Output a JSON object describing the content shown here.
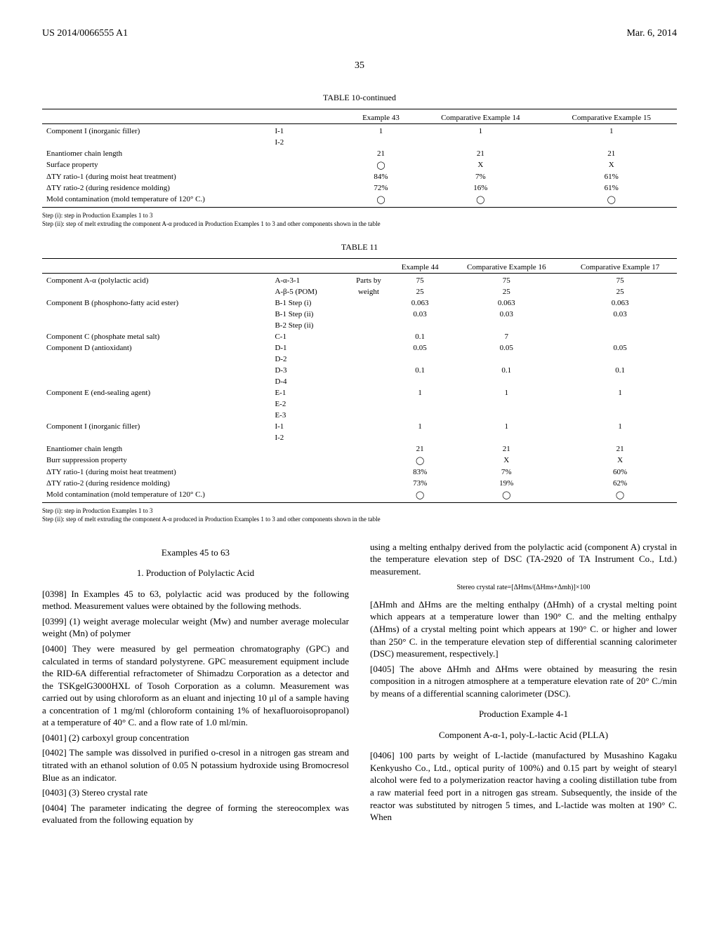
{
  "header": {
    "left": "US 2014/0066555 A1",
    "right": "Mar. 6, 2014",
    "page": "35"
  },
  "table10": {
    "title": "TABLE 10-continued",
    "col_headers": [
      "",
      "",
      "Example 43",
      "Comparative Example 14",
      "Comparative Example 15"
    ],
    "rows": [
      [
        "Component I (inorganic filler)",
        "I-1",
        "1",
        "1",
        "1"
      ],
      [
        "",
        "I-2",
        "",
        "",
        ""
      ],
      [
        "Enantiomer chain length",
        "",
        "21",
        "21",
        "21"
      ],
      [
        "Surface property",
        "",
        "◯",
        "X",
        "X"
      ],
      [
        "ΔTY ratio-1 (during moist heat treatment)",
        "",
        "84%",
        "7%",
        "61%"
      ],
      [
        "ΔTY ratio-2 (during residence molding)",
        "",
        "72%",
        "16%",
        "61%"
      ],
      [
        "Mold contamination (mold temperature of 120° C.)",
        "",
        "◯",
        "◯",
        "◯"
      ]
    ],
    "footnote1": "Step (i): step in Production Examples 1 to 3",
    "footnote2": "Step (ii): step of melt extruding the component A-α produced in Production Examples 1 to 3 and other components shown in the table"
  },
  "table11": {
    "title": "TABLE 11",
    "col_headers": [
      "",
      "",
      "",
      "Example 44",
      "Comparative Example 16",
      "Comparative Example 17"
    ],
    "rows": [
      [
        "Component A-α (polylactic acid)",
        "A-α-3-1",
        "Parts by",
        "75",
        "75",
        "75"
      ],
      [
        "",
        "A-β-5 (POM)",
        "weight",
        "25",
        "25",
        "25"
      ],
      [
        "Component B (phosphono-fatty acid ester)",
        "B-1 Step (i)",
        "",
        "0.063",
        "0.063",
        "0.063"
      ],
      [
        "",
        "B-1 Step (ii)",
        "",
        "0.03",
        "0.03",
        "0.03"
      ],
      [
        "",
        "B-2 Step (ii)",
        "",
        "",
        "",
        ""
      ],
      [
        "Component C (phosphate metal salt)",
        "C-1",
        "",
        "0.1",
        "7",
        ""
      ],
      [
        "Component D (antioxidant)",
        "D-1",
        "",
        "0.05",
        "0.05",
        "0.05"
      ],
      [
        "",
        "D-2",
        "",
        "",
        "",
        ""
      ],
      [
        "",
        "D-3",
        "",
        "0.1",
        "0.1",
        "0.1"
      ],
      [
        "",
        "D-4",
        "",
        "",
        "",
        ""
      ],
      [
        "Component E (end-sealing agent)",
        "E-1",
        "",
        "1",
        "1",
        "1"
      ],
      [
        "",
        "E-2",
        "",
        "",
        "",
        ""
      ],
      [
        "",
        "E-3",
        "",
        "",
        "",
        ""
      ],
      [
        "Component I (inorganic filler)",
        "I-1",
        "",
        "1",
        "1",
        "1"
      ],
      [
        "",
        "I-2",
        "",
        "",
        "",
        ""
      ],
      [
        "Enantiomer chain length",
        "",
        "",
        "21",
        "21",
        "21"
      ],
      [
        "Burr suppression property",
        "",
        "",
        "◯",
        "X",
        "X"
      ],
      [
        "ΔTY ratio-1 (during moist heat treatment)",
        "",
        "",
        "83%",
        "7%",
        "60%"
      ],
      [
        "ΔTY ratio-2 (during residence molding)",
        "",
        "",
        "73%",
        "19%",
        "62%"
      ],
      [
        "Mold contamination (mold temperature of 120° C.)",
        "",
        "",
        "◯",
        "◯",
        "◯"
      ]
    ],
    "footnote1": "Step (i): step in Production Examples 1 to 3",
    "footnote2": "Step (ii): step of melt extruding the component A-α produced in Production Examples 1 to 3 and other components shown in the table"
  },
  "left_col": {
    "heading1": "Examples 45 to 63",
    "heading2": "1. Production of Polylactic Acid",
    "p0398": "[0398]    In Examples 45 to 63, polylactic acid was produced by the following method. Measurement values were obtained by the following methods.",
    "p0399": "[0399]    (1) weight average molecular weight (Mw) and number average molecular weight (Mn) of polymer",
    "p0400": "[0400]    They were measured by gel permeation chromatography (GPC) and calculated in terms of standard polystyrene. GPC measurement equipment include the RID-6A differential refractometer of Shimadzu Corporation as a detector and the TSKgelG3000HXL of Tosoh Corporation as a column. Measurement was carried out by using chloroform as an eluant and injecting 10 μl of a sample having a concentration of 1 mg/ml (chloroform containing 1% of hexafluoroisopropanol) at a temperature of 40° C. and a flow rate of 1.0 ml/min.",
    "p0401": "[0401]    (2) carboxyl group concentration",
    "p0402": "[0402]    The sample was dissolved in purified o-cresol in a nitrogen gas stream and titrated with an ethanol solution of 0.05 N potassium hydroxide using Bromocresol Blue as an indicator.",
    "p0403": "[0403]    (3) Stereo crystal rate",
    "p0404": "[0404]    The parameter indicating the degree of forming the stereocomplex was evaluated from the following equation by"
  },
  "right_col": {
    "p_cont": "using a melting enthalpy derived from the polylactic acid (component A) crystal in the temperature elevation step of DSC (TA-2920 of TA Instrument Co., Ltd.) measurement.",
    "formula": "Stereo crystal rate=[ΔHms/(ΔHms+Δmh)]×100",
    "p_bracket": "[ΔHmh and ΔHms are the melting enthalpy (ΔHmh) of a crystal melting point which appears at a temperature lower than 190° C. and the melting enthalpy (ΔHms) of a crystal melting point which appears at 190° C. or higher and lower than 250° C. in the temperature elevation step of differential scanning calorimeter (DSC) measurement, respectively.]",
    "p0405": "[0405]    The above ΔHmh and ΔHms were obtained by measuring the resin composition in a nitrogen atmosphere at a temperature elevation rate of 20° C./min by means of a differential scanning calorimeter (DSC).",
    "heading3": "Production Example 4-1",
    "heading4": "Component A-α-1, poly-L-lactic Acid (PLLA)",
    "p0406": "[0406]    100 parts by weight of L-lactide (manufactured by Musashino Kagaku Kenkyusho Co., Ltd., optical purity of 100%) and 0.15 part by weight of stearyl alcohol were fed to a polymerization reactor having a cooling distillation tube from a raw material feed port in a nitrogen gas stream. Subsequently, the inside of the reactor was substituted by nitrogen 5 times, and L-lactide was molten at 190° C. When"
  }
}
